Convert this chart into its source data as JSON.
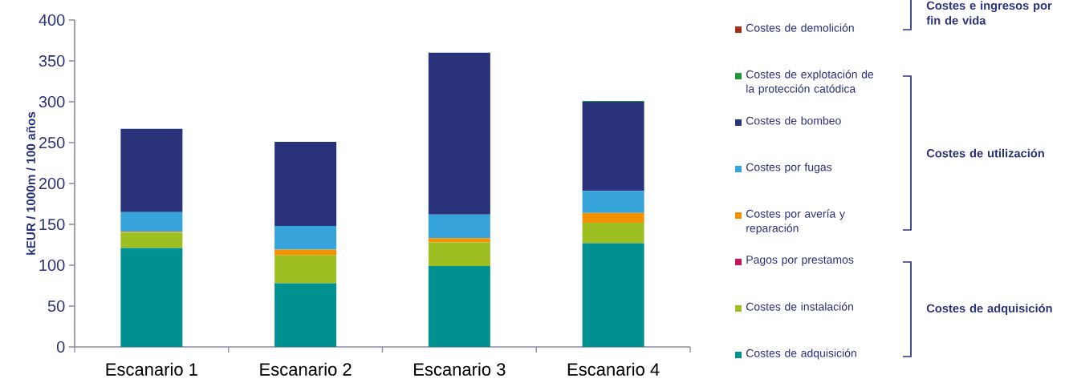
{
  "chart_data": {
    "type": "bar",
    "stacked": true,
    "ylabel": "kEUR / 1000m / 100 años",
    "categories": [
      "Escanario 1",
      "Escanario 2",
      "Escanario 3",
      "Escanario 4"
    ],
    "series": [
      {
        "name": "Costes de adquisición",
        "color": "#009090",
        "values": [
          121,
          78,
          99,
          127
        ]
      },
      {
        "name": "Costes de instalación",
        "color": "#9ebf22",
        "values": [
          19,
          34,
          29,
          25
        ]
      },
      {
        "name": "Pagos por prestamos",
        "color": "#c8125a",
        "values": [
          0,
          0,
          0,
          0
        ]
      },
      {
        "name": "Costes por avería y reparación",
        "color": "#f39200",
        "values": [
          1,
          7,
          5,
          12
        ]
      },
      {
        "name": "Costes por fugas",
        "color": "#36a4db",
        "values": [
          24,
          29,
          29,
          27
        ]
      },
      {
        "name": "Costes de bombeo",
        "color": "#2a327c",
        "values": [
          102,
          103,
          198,
          109
        ]
      },
      {
        "name": "Costes de explotación de la protección catódica",
        "color": "#1a9a3a",
        "values": [
          0,
          0,
          0,
          1
        ]
      },
      {
        "name": "Costes de demolición",
        "color": "#a0301a",
        "values": [
          0,
          0,
          0,
          0
        ]
      }
    ],
    "ylim": [
      0,
      400
    ],
    "yticks": [
      0,
      50,
      100,
      150,
      200,
      250,
      300,
      350,
      400
    ],
    "legend": "right",
    "annotations": [
      "Costes e ingresos por fin de vida",
      "Costes de utilización",
      "Costes de adquisición"
    ]
  }
}
